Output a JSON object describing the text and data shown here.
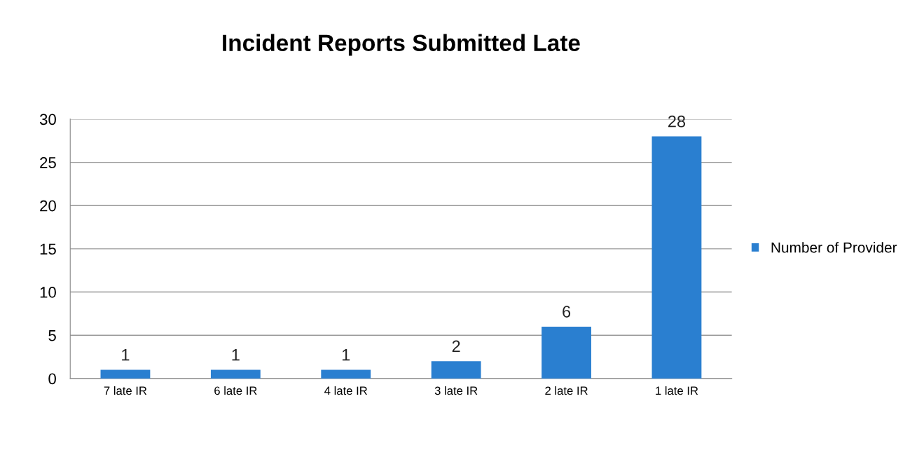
{
  "chart_data": {
    "type": "bar",
    "title": "Incident Reports Submitted Late",
    "categories": [
      "7 late IR",
      "6 late IR",
      "4 late IR",
      "3 late IR",
      "2 late IR",
      "1 late IR"
    ],
    "series": [
      {
        "name": "Number of Provider",
        "color": "#2a7fd0",
        "values": [
          1,
          1,
          1,
          2,
          6,
          28
        ]
      }
    ],
    "ylim": [
      0,
      30
    ],
    "yticks": [
      0,
      5,
      10,
      15,
      20,
      25,
      30
    ],
    "grid": "y",
    "legend": "right",
    "data_labels": true
  }
}
